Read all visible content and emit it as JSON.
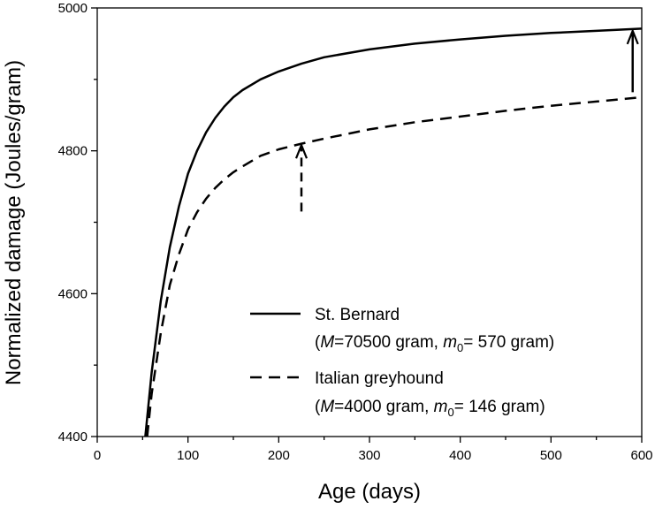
{
  "chart_data": {
    "type": "line",
    "xlabel": "Age (days)",
    "ylabel": "Normalized damage (Joules/gram)",
    "xlim": [
      0,
      600
    ],
    "ylim": [
      4400,
      5000
    ],
    "xticks": [
      "0",
      "100",
      "200",
      "300",
      "400",
      "500",
      "600"
    ],
    "yticks": [
      "4400",
      "4600",
      "4800",
      "5000"
    ],
    "grid": false,
    "legend_position": "bottom-right",
    "series": [
      {
        "name": "St. Bernard",
        "legend_detail_prefix": "(",
        "legend_detail_M": "M",
        "legend_detail_mid": "=70500 gram, ",
        "legend_detail_m": "m",
        "legend_detail_sub": "0",
        "legend_detail_suffix": "= 570 gram)",
        "style": "solid",
        "x": [
          53,
          60,
          70,
          80,
          90,
          100,
          110,
          120,
          130,
          140,
          150,
          160,
          180,
          200,
          225,
          250,
          300,
          350,
          400,
          450,
          500,
          550,
          600
        ],
        "y": [
          4400,
          4490,
          4590,
          4665,
          4722,
          4768,
          4800,
          4826,
          4846,
          4862,
          4875,
          4885,
          4900,
          4911,
          4922,
          4931,
          4942,
          4950,
          4956,
          4961,
          4965,
          4968,
          4971
        ]
      },
      {
        "name": "Italian greyhound",
        "legend_detail_prefix": "(",
        "legend_detail_M": "M",
        "legend_detail_mid": "=4000 gram, ",
        "legend_detail_m": "m",
        "legend_detail_sub": "0",
        "legend_detail_suffix": "= 146 gram)",
        "style": "dashed",
        "x": [
          55,
          60,
          70,
          80,
          90,
          100,
          110,
          120,
          130,
          140,
          150,
          160,
          180,
          200,
          225,
          250,
          300,
          350,
          400,
          450,
          500,
          550,
          600
        ],
        "y": [
          4400,
          4460,
          4545,
          4612,
          4655,
          4690,
          4714,
          4733,
          4748,
          4760,
          4770,
          4778,
          4793,
          4802,
          4810,
          4817,
          4830,
          4840,
          4848,
          4856,
          4863,
          4869,
          4875
        ]
      }
    ],
    "arrows": [
      {
        "x": 225,
        "y_from": 4715,
        "y_to": 4808,
        "style": "dashed"
      },
      {
        "x": 590,
        "y_from": 4882,
        "y_to": 4968,
        "style": "solid"
      }
    ]
  }
}
